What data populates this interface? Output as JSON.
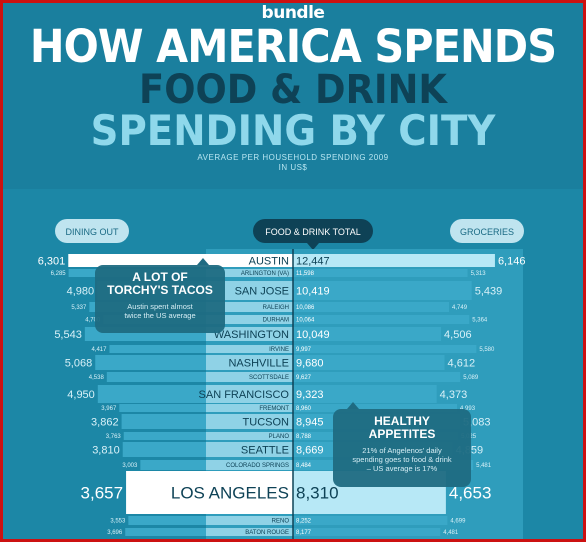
{
  "header": {
    "brand": "bundle",
    "title_main": "HOW AMERICA SPENDS",
    "title_sub": "FOOD & DRINK",
    "title_city": "SPENDING BY CITY",
    "note_line1": "AVERAGE PER HOUSEHOLD SPENDING 2009",
    "note_line2": "IN US$"
  },
  "chart_data": {
    "type": "bar",
    "column_labels": [
      "DINING OUT",
      "FOOD & DRINK TOTAL",
      "GROCERIES"
    ],
    "categories": [
      "AUSTIN",
      "ARLINGTON (VA)",
      "SAN JOSE",
      "RALEIGH",
      "DURHAM",
      "WASHINGTON",
      "IRVINE",
      "NASHVILLE",
      "SCOTTSDALE",
      "SAN FRANCISCO",
      "FREMONT",
      "TUCSON",
      "PLANO",
      "SEATTLE",
      "COLORADO SPRINGS",
      "LOS ANGELES",
      "RENO",
      "BATON ROUGE"
    ],
    "series": [
      {
        "name": "DINING OUT",
        "values": [
          6301,
          6285,
          4980,
          5337,
          4700,
          5543,
          4417,
          5068,
          4538,
          4950,
          3967,
          3862,
          3763,
          3810,
          3003,
          3657,
          3553,
          3696
        ]
      },
      {
        "name": "FOOD & DRINK TOTAL",
        "values": [
          12447,
          11598,
          10419,
          10086,
          10064,
          10049,
          9997,
          9680,
          9627,
          9323,
          8960,
          8945,
          8788,
          8669,
          8484,
          8310,
          8252,
          8177
        ]
      },
      {
        "name": "GROCERIES",
        "values": [
          6146,
          5313,
          5439,
          4749,
          5364,
          4506,
          5580,
          4612,
          5089,
          4373,
          4993,
          5083,
          5025,
          4859,
          5481,
          4653,
          4699,
          4481
        ]
      }
    ],
    "highlight_rows": [
      "AUSTIN",
      "LOS ANGELES"
    ],
    "large_rows": [
      "SAN JOSE",
      "WASHINGTON",
      "NASHVILLE",
      "SAN FRANCISCO",
      "TUCSON",
      "SEATTLE"
    ],
    "dining_labels": [
      "6,301",
      "6,285",
      "4,980",
      "5,337",
      "4,700",
      "5,543",
      "4,417",
      "5,068",
      "4,538",
      "4,950",
      "3,967",
      "3,862",
      "3,763",
      "3,810",
      "3,003",
      "3,657",
      "3,553",
      "3,696"
    ],
    "total_labels": [
      "12,447",
      "11,598",
      "10,419",
      "10,086",
      "10,064",
      "10,049",
      "9,997",
      "9,680",
      "9,627",
      "9,323",
      "8,960",
      "8,945",
      "8,788",
      "8,669",
      "8,484",
      "8,310",
      "8,252",
      "8,177"
    ],
    "grocery_labels": [
      "6,146",
      "5,313",
      "5,439",
      "4,749",
      "5,364",
      "4,506",
      "5,580",
      "4,612",
      "5,089",
      "4,373",
      "4,993",
      "5,083",
      "5,025",
      "4,859",
      "5,481",
      "4,653",
      "4,699",
      "4,481"
    ],
    "xlim": [
      0,
      7000
    ]
  },
  "callouts": [
    {
      "title_lines": [
        "A LOT OF",
        "TORCHY'S TACOS"
      ],
      "body_lines": [
        "Austin spent almost",
        "twice the US average"
      ]
    },
    {
      "title_lines": [
        "HEALTHY",
        "APPETITES"
      ],
      "body_lines": [
        "21% of Angelenos' daily",
        "spending goes to food & drink",
        "– US average is 17%"
      ]
    }
  ],
  "colors": {
    "frame": "#cc1111",
    "background": "#1c87a6",
    "header": "#1a7f9e",
    "dining_bar": "#3aa8c8",
    "grocery_bar": "#3aa8c8",
    "highlight_bar": "#ffffff",
    "highlight_total": "#b7e8f6",
    "callout": "#1f6b82",
    "total_pill": "#0e4256"
  }
}
